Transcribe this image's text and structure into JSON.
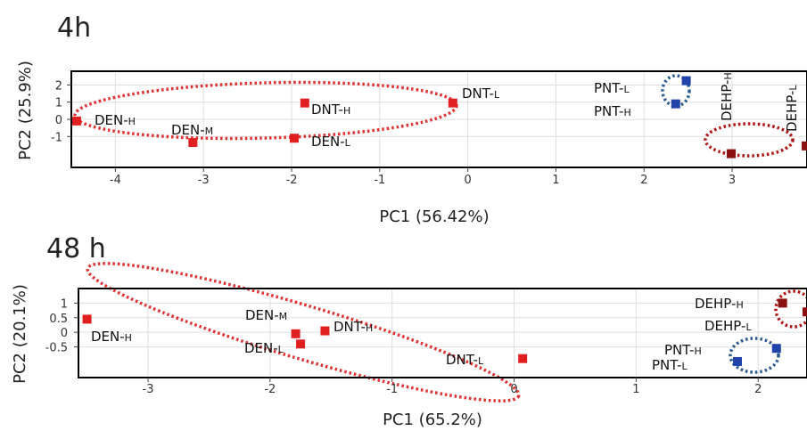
{
  "colors": {
    "den_dnt": "#e02020",
    "pnt": "#2244aa",
    "dehp": "#8b1010",
    "ellipse_red": "#e03030",
    "ellipse_darkred": "#b01515",
    "ellipse_blue": "#2a5a90"
  },
  "chart_data": [
    {
      "type": "scatter",
      "title": "4h",
      "xlabel": "PC1 (56.42%)",
      "ylabel": "PC2 (25.9%)",
      "xlim": [
        -4.5,
        3.85
      ],
      "ylim": [
        -2.8,
        2.8
      ],
      "x_ticks": [
        -4,
        -3,
        -2,
        -1,
        0,
        1,
        2,
        3
      ],
      "x_tick_labels": [
        "-4",
        "-3",
        "-2",
        "-1",
        "0",
        "1",
        "2",
        "3"
      ],
      "y_ticks": [
        2,
        1,
        0,
        -1
      ],
      "y_tick_labels": [
        "2",
        "1",
        "0",
        "-1"
      ],
      "grid": true,
      "points": [
        {
          "label": "DEN-",
          "sub": "H",
          "x": -4.44,
          "y": -0.1,
          "group": "den_dnt"
        },
        {
          "label": "DEN-",
          "sub": "M",
          "x": -3.12,
          "y": -1.35,
          "group": "den_dnt"
        },
        {
          "label": "DEN-",
          "sub": "L",
          "x": -1.97,
          "y": -1.1,
          "group": "den_dnt"
        },
        {
          "label": "DNT-",
          "sub": "H",
          "x": -1.85,
          "y": 0.95,
          "group": "den_dnt"
        },
        {
          "label": "DNT-",
          "sub": "L",
          "x": -0.17,
          "y": 0.95,
          "group": "den_dnt"
        },
        {
          "label": "PNT-",
          "sub": "L",
          "x": 2.48,
          "y": 2.25,
          "group": "pnt"
        },
        {
          "label": "PNT-",
          "sub": "H",
          "x": 2.36,
          "y": 0.9,
          "group": "pnt"
        },
        {
          "label": "DEHP-",
          "sub": "H",
          "x": 2.99,
          "y": -2.0,
          "group": "dehp"
        },
        {
          "label": "DEHP-",
          "sub": "L",
          "x": 3.84,
          "y": -1.55,
          "group": "dehp"
        }
      ]
    },
    {
      "type": "scatter",
      "title": "48 h",
      "xlabel": "PC1 (65.2%)",
      "ylabel": "PC2 (20.1%)",
      "xlim": [
        -3.57,
        2.4
      ],
      "ylim": [
        -1.55,
        1.5
      ],
      "x_ticks": [
        -3,
        -2,
        -1,
        0,
        1,
        2
      ],
      "x_tick_labels": [
        "-3",
        "-2",
        "-1",
        "0",
        "1",
        "2"
      ],
      "y_ticks": [
        1,
        0.5,
        0,
        -0.5
      ],
      "y_tick_labels": [
        "1",
        "0.5",
        "0",
        "-0.5"
      ],
      "grid": true,
      "points": [
        {
          "label": "DEN-",
          "sub": "H",
          "x": -3.5,
          "y": 0.45,
          "group": "den_dnt"
        },
        {
          "label": "DEN-",
          "sub": "M",
          "x": -1.79,
          "y": -0.05,
          "group": "den_dnt"
        },
        {
          "label": "DEN-",
          "sub": "L",
          "x": -1.75,
          "y": -0.4,
          "group": "den_dnt"
        },
        {
          "label": "DNT-",
          "sub": "H",
          "x": -1.55,
          "y": 0.05,
          "group": "den_dnt"
        },
        {
          "label": "DNT-",
          "sub": "L",
          "x": 0.07,
          "y": -0.9,
          "group": "den_dnt"
        },
        {
          "label": "DEHP-",
          "sub": "H",
          "x": 2.2,
          "y": 1.0,
          "group": "dehp"
        },
        {
          "label": "DEHP-",
          "sub": "L",
          "x": 2.4,
          "y": 0.7,
          "group": "dehp"
        },
        {
          "label": "PNT-",
          "sub": "H",
          "x": 2.15,
          "y": -0.55,
          "group": "pnt"
        },
        {
          "label": "PNT-",
          "sub": "L",
          "x": 1.83,
          "y": -1.0,
          "group": "pnt"
        }
      ]
    }
  ]
}
